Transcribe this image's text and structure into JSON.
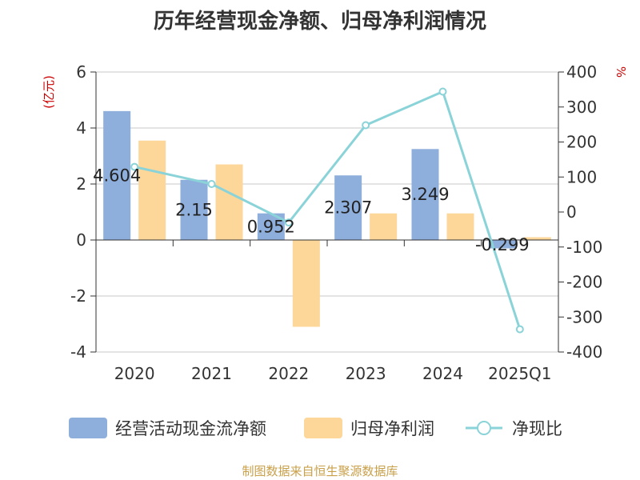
{
  "chart_data": {
    "type": "bar",
    "title": "历年经营现金净额、归母净利润情况",
    "categories": [
      "2020",
      "2021",
      "2022",
      "2023",
      "2024",
      "2025Q1"
    ],
    "y_left": {
      "label": "(亿元)",
      "min": -4,
      "max": 6,
      "ticks": [
        6,
        4,
        2,
        0,
        -2,
        -4
      ]
    },
    "y_right": {
      "label": "%",
      "min": -400,
      "max": 400,
      "ticks": [
        400,
        300,
        200,
        100,
        0,
        -100,
        -200,
        -300,
        -400
      ]
    },
    "grid": true,
    "legend_position": "bottom",
    "series": [
      {
        "name": "经营活动现金流净额",
        "type": "bar",
        "axis": "left",
        "color": "#8eaedc",
        "values": [
          4.604,
          2.15,
          0.952,
          2.307,
          3.249,
          -0.299
        ],
        "data_labels": [
          "4.604",
          "2.15",
          "0.952",
          "2.307",
          "3.249",
          "-0.299"
        ]
      },
      {
        "name": "归母净利润",
        "type": "bar",
        "axis": "left",
        "color": "#fdd69a",
        "values": [
          3.55,
          2.7,
          -3.1,
          0.95,
          0.95,
          0.1
        ]
      },
      {
        "name": "净现比",
        "type": "line",
        "axis": "right",
        "color": "#8ad3d8",
        "values": [
          129,
          80,
          -30,
          248,
          344,
          -335
        ]
      }
    ]
  },
  "source": "制图数据来自恒生聚源数据库"
}
